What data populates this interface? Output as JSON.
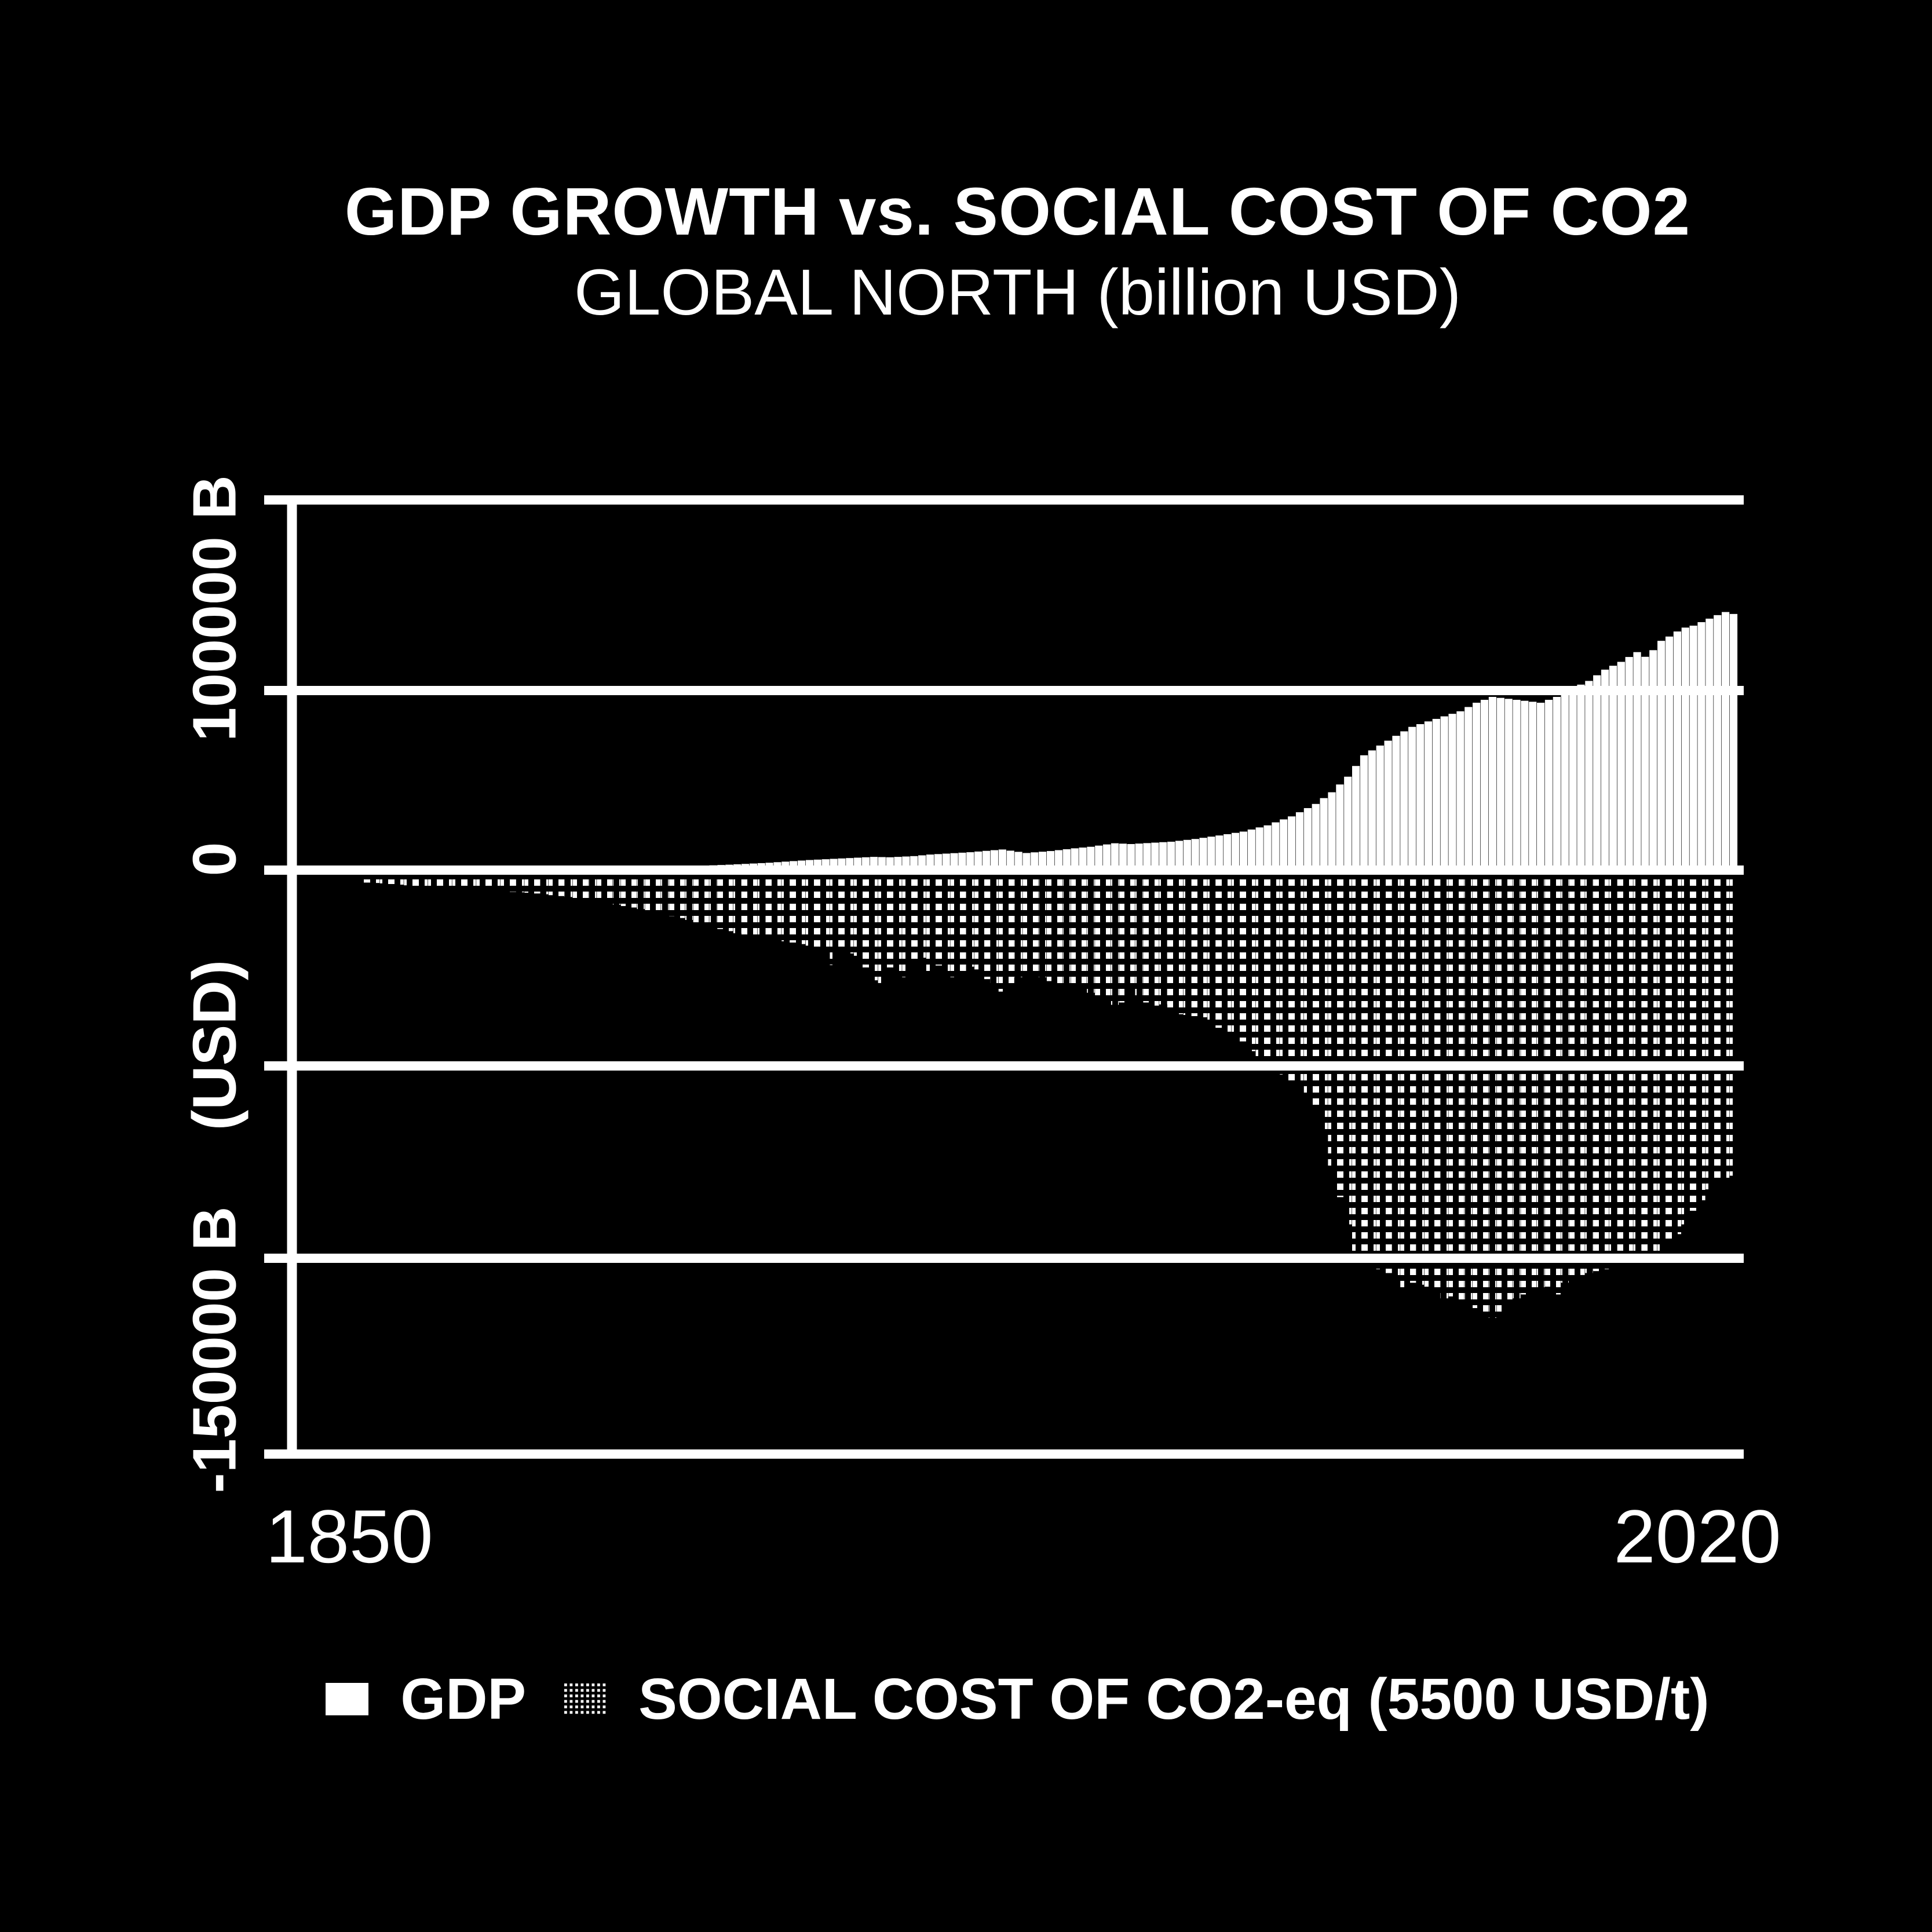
{
  "title": "GDP GROWTH vs. SOCIAL COST OF CO2",
  "subtitle": "GLOBAL NORTH (billion USD)",
  "colors": {
    "background": "#000000",
    "foreground": "#ffffff"
  },
  "y_axis": {
    "tick_labels": {
      "top": "100000 B",
      "zero": "0",
      "unit": "(USD)",
      "bottom": "-150000 B"
    }
  },
  "x_axis": {
    "tick_labels": {
      "left": "1850",
      "right": "2020"
    }
  },
  "legend": {
    "items": {
      "gdp": {
        "label": "GDP",
        "swatch": "solid-white"
      },
      "cost": {
        "label": "SOCIAL COST OF CO2-eq (5500 USD/t)",
        "swatch": "dotted-halftone"
      }
    }
  },
  "chart_data": {
    "type": "bar",
    "title": "GDP GROWTH vs. SOCIAL COST OF CO2",
    "subtitle": "GLOBAL NORTH (billion USD)",
    "xlabel": "",
    "ylabel": "(USD)",
    "unit": "billion USD",
    "xlim": [
      1850,
      2020
    ],
    "ylim": [
      -150000,
      100000
    ],
    "yticks": [
      100000,
      50000,
      0,
      -50000,
      -100000,
      -150000
    ],
    "ytick_labels_shown": [
      "100000 B",
      "0",
      "(USD)",
      "-150000 B"
    ],
    "xticks": [
      1850,
      2020
    ],
    "grid": true,
    "legend_position": "bottom",
    "bar_width_years": 1,
    "years": [
      1850,
      1851,
      1852,
      1853,
      1854,
      1855,
      1856,
      1857,
      1858,
      1859,
      1860,
      1861,
      1862,
      1863,
      1864,
      1865,
      1866,
      1867,
      1868,
      1869,
      1870,
      1871,
      1872,
      1873,
      1874,
      1875,
      1876,
      1877,
      1878,
      1879,
      1880,
      1881,
      1882,
      1883,
      1884,
      1885,
      1886,
      1887,
      1888,
      1889,
      1890,
      1891,
      1892,
      1893,
      1894,
      1895,
      1896,
      1897,
      1898,
      1899,
      1900,
      1901,
      1902,
      1903,
      1904,
      1905,
      1906,
      1907,
      1908,
      1909,
      1910,
      1911,
      1912,
      1913,
      1914,
      1915,
      1916,
      1917,
      1918,
      1919,
      1920,
      1921,
      1922,
      1923,
      1924,
      1925,
      1926,
      1927,
      1928,
      1929,
      1930,
      1931,
      1932,
      1933,
      1934,
      1935,
      1936,
      1937,
      1938,
      1939,
      1940,
      1941,
      1942,
      1943,
      1944,
      1945,
      1946,
      1947,
      1948,
      1949,
      1950,
      1951,
      1952,
      1953,
      1954,
      1955,
      1956,
      1957,
      1958,
      1959,
      1960,
      1961,
      1962,
      1963,
      1964,
      1965,
      1966,
      1967,
      1968,
      1969,
      1970,
      1971,
      1972,
      1973,
      1974,
      1975,
      1976,
      1977,
      1978,
      1979,
      1980,
      1981,
      1982,
      1983,
      1984,
      1985,
      1986,
      1987,
      1988,
      1989,
      1990,
      1991,
      1992,
      1993,
      1994,
      1995,
      1996,
      1997,
      1998,
      1999,
      2000,
      2001,
      2002,
      2003,
      2004,
      2005,
      2006,
      2007,
      2008,
      2009,
      2010,
      2011,
      2012,
      2013,
      2014,
      2015,
      2016,
      2017,
      2018,
      2019,
      2020
    ],
    "series": [
      {
        "name": "GDP",
        "style": "solid",
        "values": [
          250,
          260,
          270,
          280,
          290,
          300,
          310,
          320,
          330,
          340,
          350,
          364,
          378,
          392,
          406,
          420,
          436,
          452,
          468,
          484,
          500,
          518,
          536,
          554,
          572,
          590,
          612,
          634,
          656,
          678,
          700,
          726,
          752,
          778,
          804,
          830,
          864,
          898,
          932,
          966,
          1000,
          1080,
          1160,
          1240,
          1320,
          1400,
          1500,
          1600,
          1700,
          1800,
          1900,
          2040,
          2180,
          2320,
          2460,
          2600,
          2700,
          2800,
          2900,
          3000,
          3100,
          3200,
          3300,
          3400,
          3350,
          3300,
          3400,
          3500,
          3600,
          3800,
          4000,
          4120,
          4240,
          4360,
          4480,
          4600,
          4775,
          4950,
          5125,
          5300,
          5000,
          4700,
          4400,
          4570,
          4730,
          4900,
          5130,
          5370,
          5600,
          5800,
          6000,
          6300,
          6600,
          6900,
          6800,
          6700,
          6820,
          6940,
          7060,
          7180,
          7300,
          7530,
          7770,
          8000,
          8300,
          8600,
          8900,
          9230,
          9570,
          9900,
          10430,
          10970,
          11500,
          12270,
          13030,
          13800,
          14870,
          15930,
          17000,
          18500,
          20000,
          22000,
          24000,
          26750,
          29500,
          30750,
          32000,
          33250,
          34500,
          35650,
          36800,
          37500,
          38200,
          38850,
          39500,
          40150,
          40800,
          41900,
          43000,
          43750,
          44500,
          44250,
          44000,
          43750,
          43500,
          43250,
          43000,
          43750,
          44500,
          45600,
          46700,
          47650,
          48600,
          50050,
          51500,
          52500,
          53500,
          54750,
          56000,
          54800,
          56500,
          58900,
          60000,
          61300,
          62300,
          62800,
          63700,
          64600,
          65500,
          66300,
          65800
        ]
      },
      {
        "name": "SOCIAL COST OF CO2-eq (5500 USD/t)",
        "style": "dotted",
        "values": [
          -3200,
          -3300,
          -3400,
          -3570,
          -3730,
          -3900,
          -4070,
          -4230,
          -4400,
          -4550,
          -4700,
          -4810,
          -4920,
          -5030,
          -5140,
          -5250,
          -5360,
          -5470,
          -5580,
          -5690,
          -5800,
          -6000,
          -6200,
          -6430,
          -6660,
          -6900,
          -7170,
          -7430,
          -7700,
          -8100,
          -8500,
          -8870,
          -9230,
          -9600,
          -10000,
          -10400,
          -10800,
          -11300,
          -11800,
          -12300,
          -12800,
          -13400,
          -14000,
          -14600,
          -15130,
          -15670,
          -16200,
          -16550,
          -16900,
          -17250,
          -17600,
          -17930,
          -18270,
          -18600,
          -19000,
          -19400,
          -19800,
          -20200,
          -24400,
          -20800,
          -21400,
          -22000,
          -25000,
          -28300,
          -29000,
          -25000,
          -26500,
          -27500,
          -23500,
          -22500,
          -27200,
          -24500,
          -26000,
          -27500,
          -26000,
          -24800,
          -25500,
          -28000,
          -29500,
          -31200,
          -29500,
          -27500,
          -26000,
          -26800,
          -27500,
          -28500,
          -29800,
          -30500,
          -29500,
          -30500,
          -31500,
          -32500,
          -33500,
          -34600,
          -34000,
          -30500,
          -32500,
          -34000,
          -34800,
          -34500,
          -36200,
          -37000,
          -37200,
          -37500,
          -37800,
          -39500,
          -40500,
          -41500,
          -42500,
          -44000,
          -46500,
          -48800,
          -50200,
          -51500,
          -52500,
          -54000,
          -55500,
          -57500,
          -61000,
          -68000,
          -76000,
          -84000,
          -91000,
          -98000,
          -100000,
          -101000,
          -102500,
          -103500,
          -104500,
          -107500,
          -106000,
          -106500,
          -107000,
          -108000,
          -110000,
          -109500,
          -110500,
          -111500,
          -112500,
          -113500,
          -115000,
          -113500,
          -111500,
          -110000,
          -109000,
          -108000,
          -107500,
          -107000,
          -109000,
          -106000,
          -105000,
          -104000,
          -103500,
          -103000,
          -102500,
          -102000,
          -101500,
          -101000,
          -100500,
          -98000,
          -100500,
          -99500,
          -96000,
          -93500,
          -91000,
          -87500,
          -84800,
          -82000,
          -80500,
          -79300,
          -78500
        ]
      }
    ]
  }
}
